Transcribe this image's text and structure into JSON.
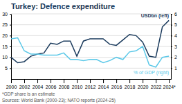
{
  "chart_data": {
    "type": "line",
    "title": "Turkey: Defence expenditure",
    "x": [
      2000,
      2001,
      2002,
      2003,
      2004,
      2005,
      2006,
      2007,
      2008,
      2009,
      2010,
      2011,
      2012,
      2013,
      2014,
      2015,
      2016,
      2017,
      2018,
      2019,
      2020,
      2021,
      2022,
      2023,
      2024
    ],
    "series": [
      {
        "name": "USDbn (left)",
        "color": "#1a3a5c",
        "line_style": "solid",
        "values": [
          10.0,
          7.5,
          8.0,
          10.5,
          11.5,
          12.0,
          16.5,
          16.0,
          17.5,
          17.5,
          10.5,
          17.5,
          18.5,
          18.5,
          18.5,
          16.0,
          15.5,
          18.0,
          20.5,
          20.0,
          17.0,
          10.5,
          10.0,
          24.0,
          27.0
        ]
      },
      {
        "name": "% of GDP (right)",
        "color": "#5bc8e8",
        "line_style": "solid",
        "axis": "y2",
        "values": [
          3.7,
          3.8,
          2.6,
          2.3,
          2.3,
          2.2,
          2.2,
          2.2,
          2.4,
          1.8,
          1.8,
          1.7,
          1.8,
          1.8,
          1.5,
          1.7,
          2.0,
          1.8,
          2.5,
          2.6,
          3.0,
          1.3,
          1.1,
          2.0,
          2.1
        ]
      }
    ],
    "xlim": [
      2000,
      2024.3
    ],
    "xticks": [
      2000,
      2002,
      2004,
      2006,
      2008,
      2010,
      2012,
      2014,
      2016,
      2018,
      2020,
      2022,
      {
        "value": 2024,
        "label": "2024*"
      }
    ],
    "ylim": [
      0,
      30
    ],
    "yticks": [
      5,
      10,
      15,
      20,
      25,
      30
    ],
    "y2lim": [
      0,
      6
    ],
    "y2ticks": [
      1,
      2,
      3,
      4,
      5,
      6
    ],
    "grid": true,
    "footnote": "*GDP share is an estimate",
    "source": "Sources: World Bank (2000-23); NATO reports (2024-25)"
  }
}
